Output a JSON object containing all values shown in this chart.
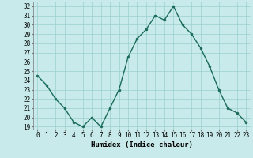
{
  "x": [
    0,
    1,
    2,
    3,
    4,
    5,
    6,
    7,
    8,
    9,
    10,
    11,
    12,
    13,
    14,
    15,
    16,
    17,
    18,
    19,
    20,
    21,
    22,
    23
  ],
  "y": [
    24.5,
    23.5,
    22.0,
    21.0,
    19.5,
    19.0,
    20.0,
    19.0,
    21.0,
    23.0,
    26.5,
    28.5,
    29.5,
    31.0,
    30.5,
    32.0,
    30.0,
    29.0,
    27.5,
    25.5,
    23.0,
    21.0,
    20.5,
    19.5
  ],
  "line_color": "#1a6b5a",
  "marker": "o",
  "markersize": 2,
  "linewidth": 1.0,
  "bg_color": "#c8eaea",
  "grid_color": "#9acfcf",
  "xlabel": "Humidex (Indice chaleur)",
  "ylabel": "",
  "ylim": [
    18.7,
    32.5
  ],
  "xlim": [
    -0.5,
    23.5
  ],
  "yticks": [
    19,
    20,
    21,
    22,
    23,
    24,
    25,
    26,
    27,
    28,
    29,
    30,
    31,
    32
  ],
  "xticks": [
    0,
    1,
    2,
    3,
    4,
    5,
    6,
    7,
    8,
    9,
    10,
    11,
    12,
    13,
    14,
    15,
    16,
    17,
    18,
    19,
    20,
    21,
    22,
    23
  ],
  "tick_fontsize": 5.5,
  "label_fontsize": 6.5
}
